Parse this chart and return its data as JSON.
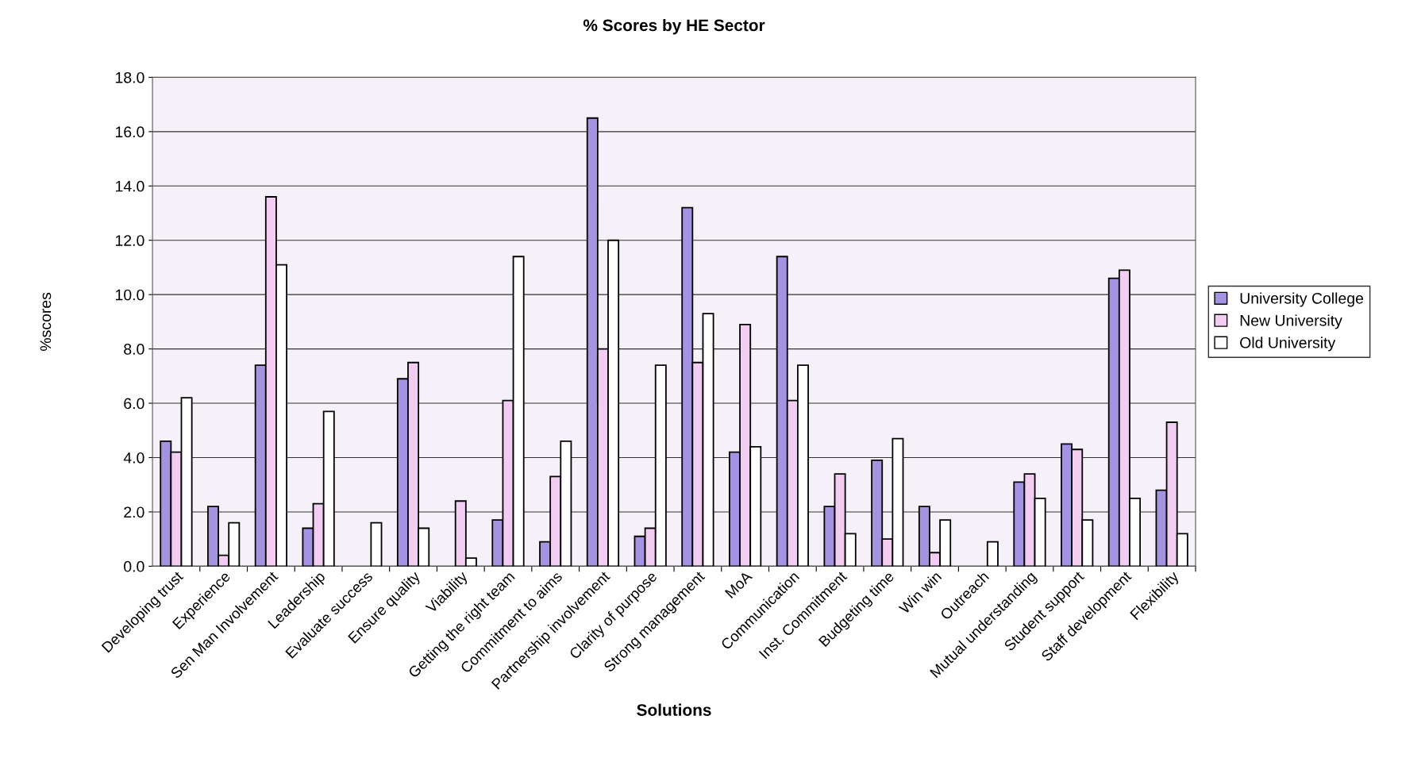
{
  "chart_data": {
    "type": "bar",
    "title": "% Scores by HE Sector",
    "xlabel": "Solutions",
    "ylabel": "%scores",
    "categories": [
      "Developing trust",
      "Experience",
      "Sen Man Involvement",
      "Leadership",
      "Evaluate success",
      "Ensure quality",
      "Viability",
      "Getting the right team",
      "Commitment to aims",
      "Partnership involvement",
      "Clarity of purpose",
      "Strong management",
      "MoA",
      "Communication",
      "Inst. Commitment",
      "Budgeting time",
      "Win win",
      "Outreach",
      "Mutual understanding",
      "Student support",
      "Staff development",
      "Flexibility"
    ],
    "series": [
      {
        "name": "University College",
        "color": "#a393e0",
        "values": [
          4.6,
          2.2,
          7.4,
          1.4,
          0,
          6.9,
          0,
          1.7,
          0.9,
          16.5,
          1.1,
          13.2,
          4.2,
          11.4,
          2.2,
          3.9,
          2.2,
          0,
          3.1,
          4.5,
          10.6,
          2.8
        ]
      },
      {
        "name": "New University",
        "color": "#f3cdf1",
        "values": [
          4.2,
          0.4,
          13.6,
          2.3,
          0,
          7.5,
          2.4,
          6.1,
          3.3,
          8.0,
          1.4,
          7.5,
          8.9,
          6.1,
          3.4,
          1.0,
          0.5,
          0,
          3.4,
          4.3,
          10.9,
          5.3
        ]
      },
      {
        "name": "Old University",
        "color": "#ffffff",
        "values": [
          6.2,
          1.6,
          11.1,
          5.7,
          1.6,
          1.4,
          0.3,
          11.4,
          4.6,
          12.0,
          7.4,
          9.3,
          4.4,
          7.4,
          1.2,
          4.7,
          1.7,
          0.9,
          2.5,
          1.7,
          2.5,
          1.2
        ]
      }
    ],
    "ylim": [
      0,
      18
    ],
    "yticks": [
      {
        "value": 0,
        "label": "0.0"
      },
      {
        "value": 2,
        "label": "2.0"
      },
      {
        "value": 4,
        "label": "4.0"
      },
      {
        "value": 6,
        "label": "6.0"
      },
      {
        "value": 8,
        "label": "8.0"
      },
      {
        "value": 10,
        "label": "10.0"
      },
      {
        "value": 12,
        "label": "12.0"
      },
      {
        "value": 14,
        "label": "14.0"
      },
      {
        "value": 16,
        "label": "16.0"
      },
      {
        "value": 18,
        "label": "18.0"
      }
    ],
    "grid": "y",
    "legend": "right"
  }
}
